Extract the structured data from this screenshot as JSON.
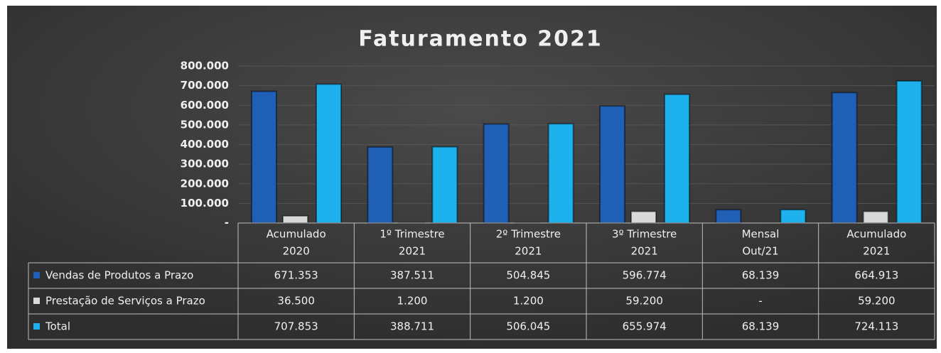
{
  "chart_data": {
    "type": "bar",
    "title": "Faturamento  2021",
    "categories": [
      [
        "Acumulado",
        "2020"
      ],
      [
        "1º Trimestre",
        "2021"
      ],
      [
        "2º Trimestre",
        "2021"
      ],
      [
        "3º Trimestre",
        "2021"
      ],
      [
        "Mensal",
        "Out/21"
      ],
      [
        "Acumulado",
        "2021"
      ]
    ],
    "series": [
      {
        "name": "Vendas de Produtos a Prazo",
        "color": "#1f5fb5",
        "values": [
          671353,
          387511,
          504845,
          596774,
          68139,
          664913
        ],
        "value_labels": [
          "671.353",
          "387.511",
          "504.845",
          "596.774",
          "68.139",
          "664.913"
        ]
      },
      {
        "name": "Prestação de Serviços a Prazo",
        "color": "#d9d9d9",
        "values": [
          36500,
          1200,
          1200,
          59200,
          0,
          59200
        ],
        "value_labels": [
          "36.500",
          "1.200",
          "1.200",
          "59.200",
          "-",
          "59.200"
        ]
      },
      {
        "name": "Total",
        "color": "#1db2ee",
        "values": [
          707853,
          388711,
          506045,
          655974,
          68139,
          724113
        ],
        "value_labels": [
          "707.853",
          "388.711",
          "506.045",
          "655.974",
          "68.139",
          "724.113"
        ]
      }
    ],
    "ylim": [
      0,
      800000
    ],
    "yticks": [
      {
        "value": 0,
        "label": "-"
      },
      {
        "value": 100000,
        "label": "100.000"
      },
      {
        "value": 200000,
        "label": "200.000"
      },
      {
        "value": 300000,
        "label": "300.000"
      },
      {
        "value": 400000,
        "label": "400.000"
      },
      {
        "value": 500000,
        "label": "500.000"
      },
      {
        "value": 600000,
        "label": "600.000"
      },
      {
        "value": 700000,
        "label": "700.000"
      },
      {
        "value": 800000,
        "label": "800.000"
      }
    ],
    "grid": true
  }
}
